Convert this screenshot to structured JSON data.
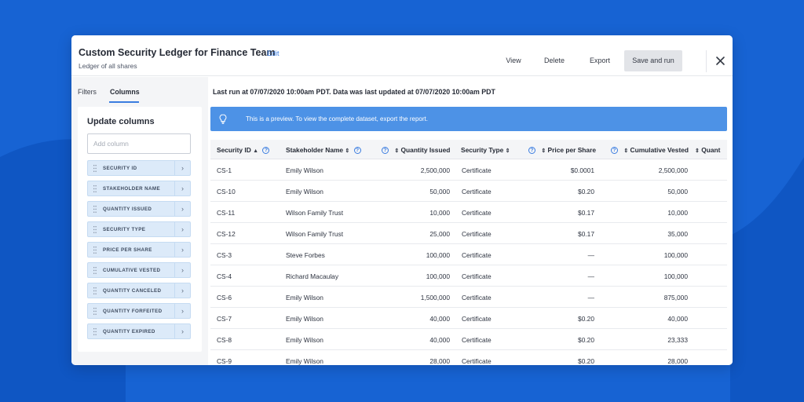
{
  "header": {
    "title": "Custom Security Ledger for Finance Team",
    "edit_label": "Edit",
    "subtitle": "Ledger of all shares",
    "buttons": {
      "view": "View",
      "delete": "Delete",
      "export": "Export",
      "save_and_run": "Save and run"
    }
  },
  "sidebar": {
    "tabs": {
      "filters": "Filters",
      "columns": "Columns"
    },
    "panel_title": "Update columns",
    "add_column_placeholder": "Add column",
    "columns": [
      "SECURITY ID",
      "STAKEHOLDER NAME",
      "QUANTITY ISSUED",
      "SECURITY TYPE",
      "PRICE PER SHARE",
      "CUMULATIVE VESTED",
      "QUANTITY CANCELED",
      "QUANTITY FORFEITED",
      "QUANTITY EXPIRED"
    ]
  },
  "main": {
    "last_run": "Last run at 07/07/2020 10:00am PDT. Data was last updated at 07/07/2020 10:00am PDT",
    "banner_text": "This is a preview. To view the complete dataset, export the report.",
    "table": {
      "headers": [
        "Security ID",
        "Stakeholder Name",
        "Quantity Issued",
        "Security Type",
        "Price per Share",
        "Cumulative Vested",
        "Quant"
      ],
      "rows": [
        [
          "CS-1",
          "Emily Wilson",
          "2,500,000",
          "Certificate",
          "$0.0001",
          "2,500,000"
        ],
        [
          "CS-10",
          "Emily Wilson",
          "50,000",
          "Certificate",
          "$0.20",
          "50,000"
        ],
        [
          "CS-11",
          "Wilson Family Trust",
          "10,000",
          "Certificate",
          "$0.17",
          "10,000"
        ],
        [
          "CS-12",
          "Wilson Family Trust",
          "25,000",
          "Certificate",
          "$0.17",
          "35,000"
        ],
        [
          "CS-3",
          "Steve Forbes",
          "100,000",
          "Certificate",
          "—",
          "100,000"
        ],
        [
          "CS-4",
          "Richard Macaulay",
          "100,000",
          "Certificate",
          "—",
          "100,000"
        ],
        [
          "CS-6",
          "Emily Wilson",
          "1,500,000",
          "Certificate",
          "—",
          "875,000"
        ],
        [
          "CS-7",
          "Emily Wilson",
          "40,000",
          "Certificate",
          "$0.20",
          "40,000"
        ],
        [
          "CS-8",
          "Emily Wilson",
          "40,000",
          "Certificate",
          "$0.20",
          "23,333"
        ],
        [
          "CS-9",
          "Emily Wilson",
          "28,000",
          "Certificate",
          "$0.20",
          "28,000"
        ]
      ]
    }
  },
  "icons": {
    "close": "close-icon",
    "help": "help-icon",
    "sort": "sort-icon",
    "bulb": "lightbulb-icon",
    "grip": "drag-handle-icon",
    "chevron": "chevron-right-icon"
  },
  "colors": {
    "background": "#1763d3",
    "accent": "#3b7de0",
    "banner": "#4d92e6",
    "column_chip": "#dceaf9"
  }
}
